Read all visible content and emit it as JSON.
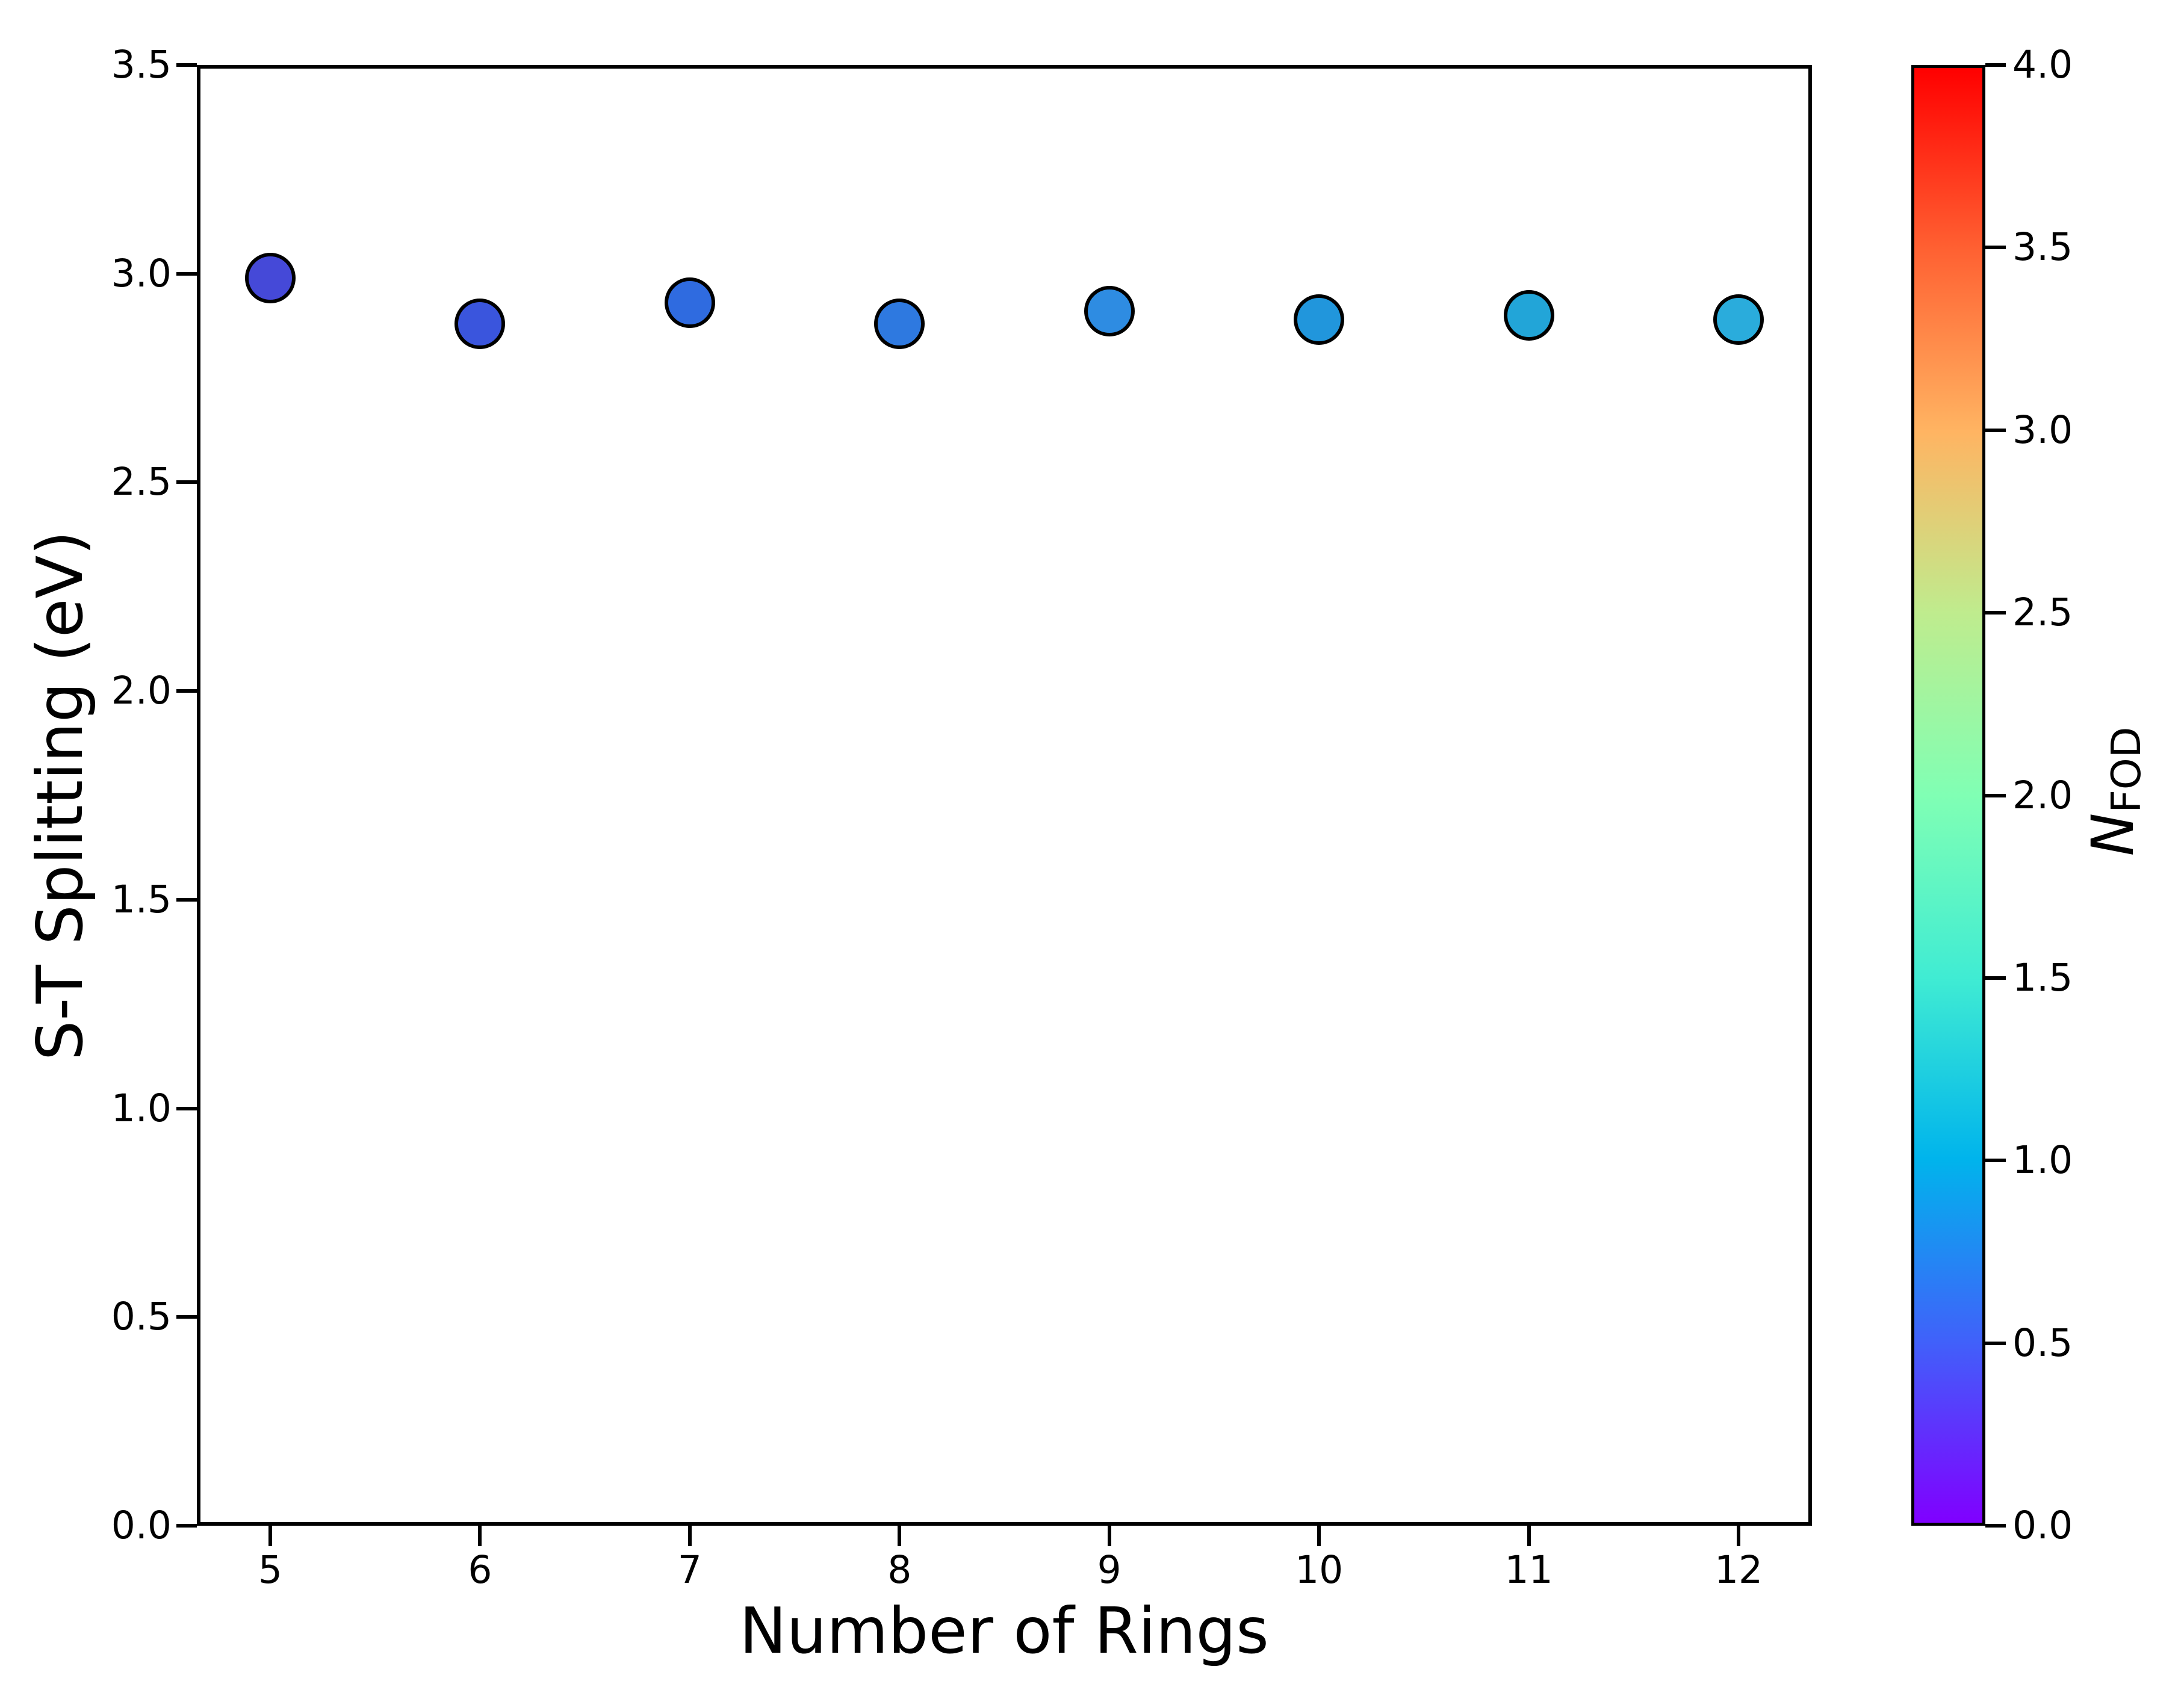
{
  "figure": {
    "background": "#ffffff",
    "spine_color": "#000000"
  },
  "chart_data": {
    "type": "scatter",
    "title": "",
    "xlabel": "Number of Rings",
    "ylabel": "S-T Splitting (eV)",
    "x": [
      5,
      6,
      7,
      8,
      9,
      10,
      11,
      12
    ],
    "y": [
      2.99,
      2.88,
      2.93,
      2.88,
      2.91,
      2.89,
      2.9,
      2.89
    ],
    "xlim": [
      4.65,
      12.35
    ],
    "ylim": [
      0.0,
      3.5
    ],
    "xtick_values": [
      5,
      6,
      7,
      8,
      9,
      10,
      11,
      12
    ],
    "xtick_labels": [
      "5",
      "6",
      "7",
      "8",
      "9",
      "10",
      "11",
      "12"
    ],
    "ytick_values": [
      0.0,
      0.5,
      1.0,
      1.5,
      2.0,
      2.5,
      3.0,
      3.5
    ],
    "ytick_labels": [
      "0.0",
      "0.5",
      "1.0",
      "1.5",
      "2.0",
      "2.5",
      "3.0",
      "3.5"
    ],
    "grid": false,
    "legend_position": "none",
    "marker": {
      "shape": "circle",
      "edge_color": "#000000",
      "colors": [
        "#4549d8",
        "#3a55dd",
        "#2f6be0",
        "#2e79e0",
        "#2e8ce2",
        "#2196dc",
        "#22a5d8",
        "#2aacdc"
      ]
    },
    "color_encoding": {
      "variable": "N_FOD",
      "values_estimated": [
        0.38,
        0.44,
        0.55,
        0.63,
        0.74,
        0.8,
        0.88,
        0.93
      ]
    },
    "colorbar": {
      "label_main": "N",
      "label_sub": "FOD",
      "min": 0.0,
      "max": 4.0,
      "tick_values": [
        0.0,
        0.5,
        1.0,
        1.5,
        2.0,
        2.5,
        3.0,
        3.5,
        4.0
      ],
      "tick_labels": [
        "0.0",
        "0.5",
        "1.0",
        "1.5",
        "2.0",
        "2.5",
        "3.0",
        "3.5",
        "4.0"
      ],
      "colormap": "rainbow",
      "gradient_stops": [
        "#8000ff",
        "#4061fa",
        "#00b4ec",
        "#40ecd3",
        "#80ffb4",
        "#bfec8e",
        "#ffb462",
        "#ff6132",
        "#ff0000"
      ]
    }
  }
}
